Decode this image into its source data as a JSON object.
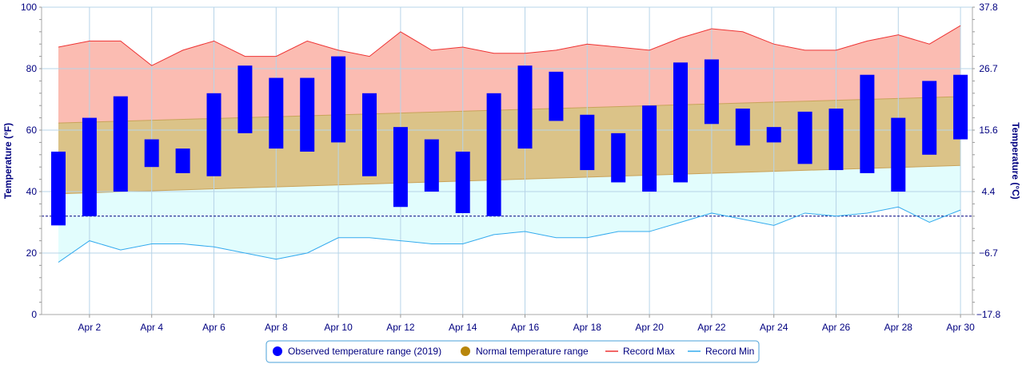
{
  "chart_data": {
    "type": "bar",
    "days": [
      "Apr 1",
      "Apr 2",
      "Apr 3",
      "Apr 4",
      "Apr 5",
      "Apr 6",
      "Apr 7",
      "Apr 8",
      "Apr 9",
      "Apr 10",
      "Apr 11",
      "Apr 12",
      "Apr 13",
      "Apr 14",
      "Apr 15",
      "Apr 16",
      "Apr 17",
      "Apr 18",
      "Apr 19",
      "Apr 20",
      "Apr 21",
      "Apr 22",
      "Apr 23",
      "Apr 24",
      "Apr 25",
      "Apr 26",
      "Apr 27",
      "Apr 28",
      "Apr 29",
      "Apr 30"
    ],
    "x_tick_labels": [
      "Apr 2",
      "Apr 4",
      "Apr 6",
      "Apr 8",
      "Apr 10",
      "Apr 12",
      "Apr 14",
      "Apr 16",
      "Apr 18",
      "Apr 20",
      "Apr 22",
      "Apr 24",
      "Apr 26",
      "Apr 28",
      "Apr 30"
    ],
    "ylabel_left": "Temperature (°F)",
    "ylabel_right": "Temperature (°C)",
    "ylim": [
      0,
      100
    ],
    "y_ticks_left": [
      "0",
      "20",
      "40",
      "60",
      "80",
      "100"
    ],
    "y_ticks_right": [
      "−17.8",
      "−6.7",
      "4.4",
      "15.6",
      "26.7",
      "37.8"
    ],
    "grid": true,
    "legend_position": "bottom-center",
    "freezing_line_f": 32,
    "colors": {
      "observed": "#0000ff",
      "normal_fill": "#dbc388",
      "normal_legend": "#b8860b",
      "record_max_line": "#ee3333",
      "record_max_fill": "#fbbcb2",
      "record_min_line": "#33aaee",
      "record_min_fill": "#e2fdfd",
      "grid": "#b7d4e8",
      "axis_text": "#000080"
    },
    "observed": {
      "name": "Observed temperature range (2019)",
      "high": [
        53,
        64,
        71,
        57,
        54,
        72,
        81,
        77,
        77,
        84,
        72,
        61,
        57,
        53,
        72,
        81,
        79,
        65,
        59,
        68,
        82,
        83,
        67,
        61,
        66,
        67,
        78,
        64,
        76,
        78
      ],
      "low": [
        29,
        32,
        40,
        48,
        46,
        45,
        59,
        54,
        53,
        56,
        45,
        35,
        40,
        33,
        32,
        54,
        63,
        47,
        43,
        40,
        43,
        62,
        55,
        56,
        49,
        47,
        46,
        40,
        52,
        57
      ]
    },
    "normal": {
      "name": "Normal temperature range",
      "high_start": 62.3,
      "high_end": 70.9,
      "low_start": 39.3,
      "low_end": 48.5
    },
    "record_max": {
      "name": "Record Max",
      "values": [
        87,
        89,
        89,
        81,
        86,
        89,
        84,
        84,
        89,
        86,
        84,
        92,
        86,
        87,
        85,
        85,
        86,
        88,
        87,
        86,
        90,
        93,
        92,
        88,
        86,
        86,
        89,
        91,
        88,
        94
      ]
    },
    "record_min": {
      "name": "Record Min",
      "values": [
        17,
        24,
        21,
        23,
        23,
        22,
        20,
        18,
        20,
        25,
        25,
        24,
        23,
        23,
        26,
        27,
        25,
        25,
        27,
        27,
        30,
        33,
        31,
        29,
        33,
        32,
        33,
        35,
        30,
        34
      ]
    }
  }
}
